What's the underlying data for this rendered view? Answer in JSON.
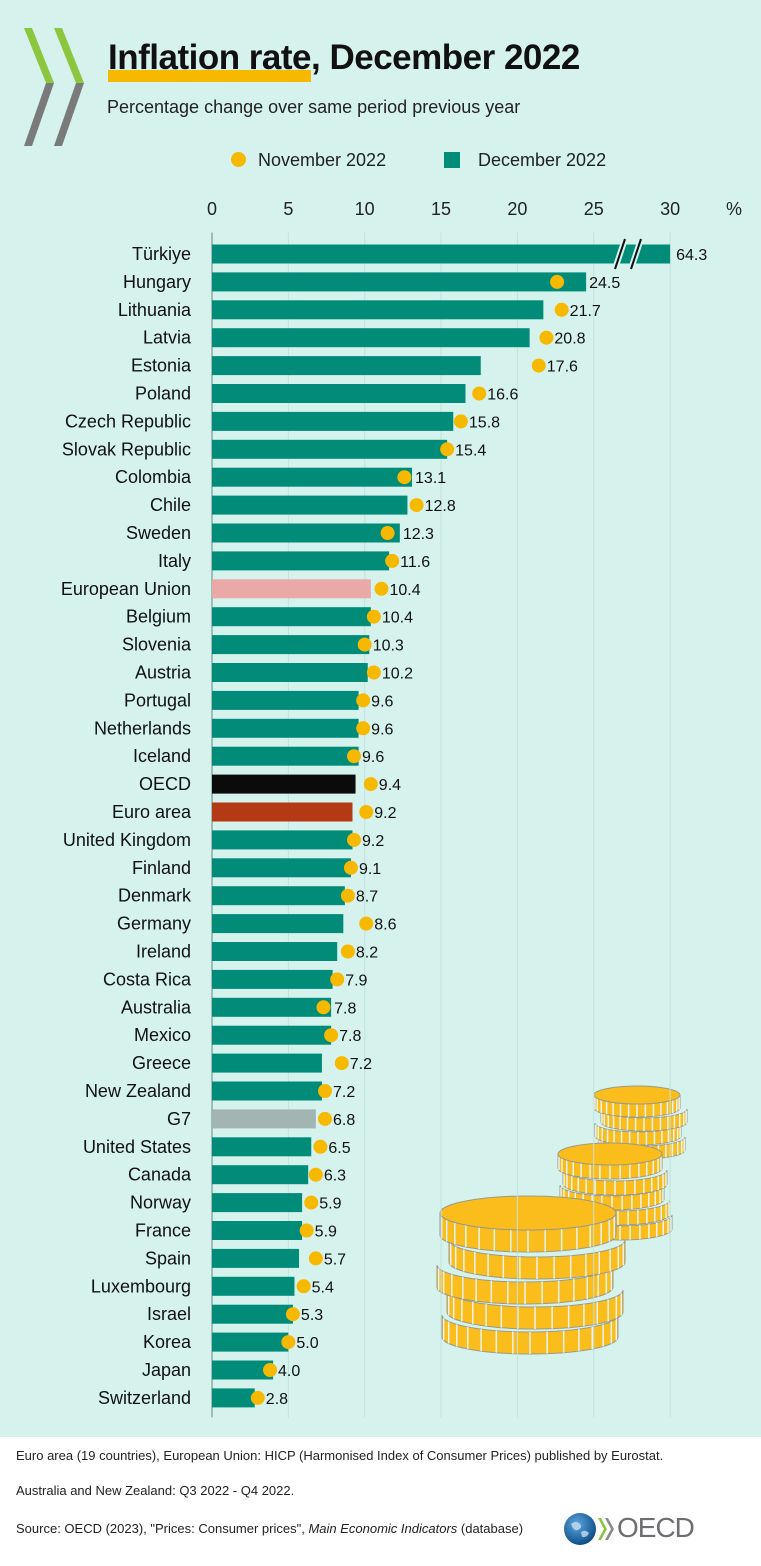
{
  "header": {
    "title_highlight": "Inflation rate",
    "title_rest": ", December 2022",
    "subtitle": "Percentage change over same period previous year",
    "logo": "OECD chevrons"
  },
  "legend": {
    "november": "November 2022",
    "december": "December 2022"
  },
  "colors": {
    "background": "#d6f2ed",
    "bar_default": "#008c79",
    "dot": "#f7b800",
    "european_union": "#eaa9a6",
    "oecd": "#0b0b0b",
    "euro_area": "#b33a14",
    "g7": "#a3b5b2",
    "highlight": "#f7b800"
  },
  "chart_data": {
    "type": "bar",
    "orientation": "horizontal",
    "title": "Inflation rate, December 2022",
    "subtitle": "Percentage change over same period previous year",
    "xlabel": "%",
    "xlim": [
      0,
      30
    ],
    "xticks": [
      "0",
      "5",
      "10",
      "15",
      "20",
      "25",
      "30"
    ],
    "unit_label": "%",
    "grid": true,
    "legend_position": "top",
    "axis_break": "Türkiye",
    "categories": [
      "Türkiye",
      "Hungary",
      "Lithuania",
      "Latvia",
      "Estonia",
      "Poland",
      "Czech Republic",
      "Slovak Republic",
      "Colombia",
      "Chile",
      "Sweden",
      "Italy",
      "European Union",
      "Belgium",
      "Slovenia",
      "Austria",
      "Portugal ",
      "Netherlands",
      "Iceland",
      "OECD",
      "Euro area",
      "United Kingdom",
      "Finland",
      "Denmark",
      "Germany",
      "Ireland",
      "Costa Rica",
      "Australia",
      "Mexico",
      "Greece",
      "New Zealand",
      "G7",
      "United States",
      "Canada",
      "Norway",
      "France",
      "Spain",
      "Luxembourg",
      "Israel",
      "Korea",
      "Japan",
      "Switzerland"
    ],
    "series": [
      {
        "name": "December 2022",
        "kind": "bar",
        "values": [
          64.3,
          24.5,
          21.7,
          20.8,
          17.6,
          16.6,
          15.8,
          15.4,
          13.1,
          12.8,
          12.3,
          11.6,
          10.4,
          10.4,
          10.3,
          10.2,
          9.6,
          9.6,
          9.6,
          9.4,
          9.2,
          9.2,
          9.1,
          8.7,
          8.6,
          8.2,
          7.9,
          7.8,
          7.8,
          7.2,
          7.2,
          6.8,
          6.5,
          6.3,
          5.9,
          5.9,
          5.7,
          5.4,
          5.3,
          5.0,
          4.0,
          2.8
        ],
        "labels": [
          "64.3",
          "24.5",
          "21.7",
          "20.8",
          "17.6",
          "16.6",
          "15.8",
          "15.4",
          "13.1",
          "12.8",
          "12.3",
          "11.6",
          "10.4",
          "10.4",
          "10.3",
          "10.2",
          "9.6",
          "9.6",
          "9.6",
          "9.4",
          "9.2",
          "9.2",
          "9.1",
          "8.7",
          "8.6",
          "8.2",
          "7.9",
          "7.8",
          "7.8",
          "7.2",
          "7.2",
          "6.8",
          "6.5",
          "6.3",
          "5.9",
          "5.9",
          "5.7",
          "5.4",
          "5.3",
          "5.0",
          "4.0",
          "2.8"
        ]
      },
      {
        "name": "November 2022",
        "kind": "dot",
        "values": [
          null,
          22.6,
          22.9,
          21.9,
          21.4,
          17.5,
          16.3,
          15.4,
          12.6,
          13.4,
          11.5,
          11.8,
          11.1,
          10.6,
          10.0,
          10.6,
          9.9,
          9.9,
          9.3,
          10.4,
          10.1,
          9.3,
          9.1,
          8.9,
          10.1,
          8.9,
          8.2,
          7.3,
          7.8,
          8.5,
          7.4,
          7.4,
          7.1,
          6.8,
          6.5,
          6.2,
          6.8,
          6.0,
          5.3,
          5.0,
          3.8,
          3.0
        ]
      }
    ],
    "special_bars": {
      "European Union": "european_union",
      "OECD": "oecd",
      "Euro area": "euro_area",
      "G7": "g7"
    }
  },
  "footer": {
    "note1": "Euro area (19 countries), European Union: HICP (Harmonised Index of Consumer Prices) published by Eurostat.",
    "note2": "Australia and New Zealand: Q3 2022 - Q4 2022.",
    "source_prefix": "Source: OECD (2023), \"Prices: Consumer prices\", ",
    "source_italic": "Main Economic Indicators",
    "source_suffix": " (database)",
    "brand": "OECD"
  }
}
